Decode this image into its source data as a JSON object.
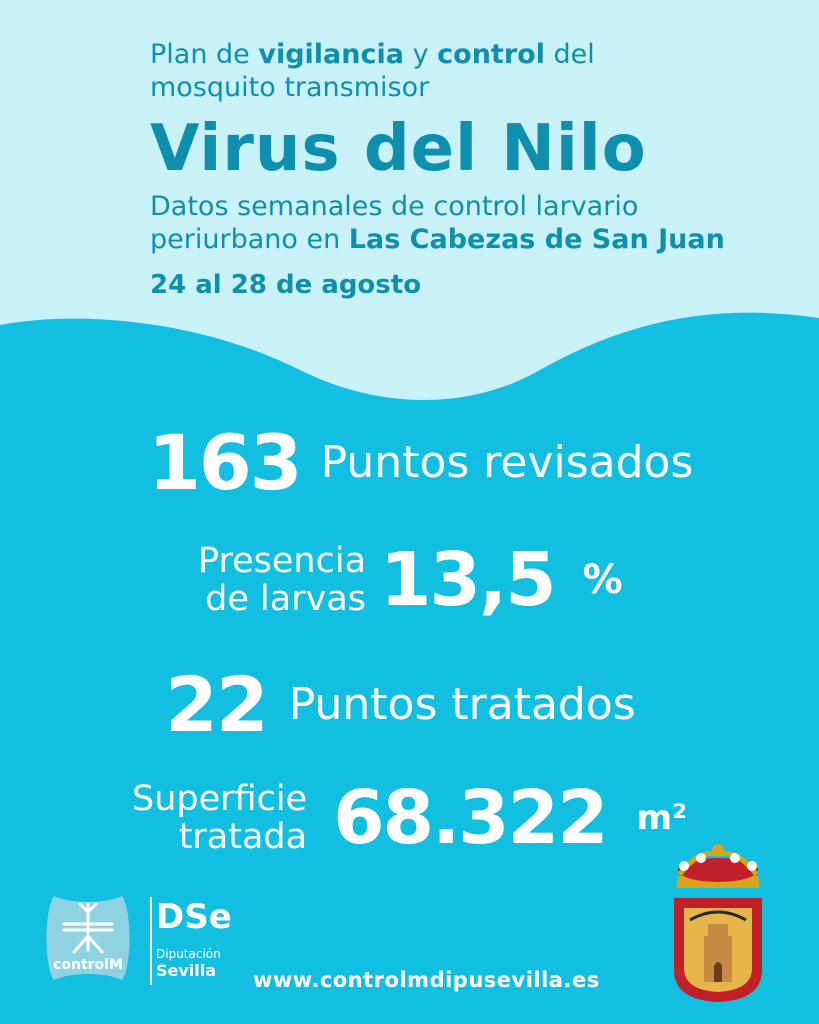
{
  "header": {
    "line1_a": "Plan de ",
    "line1_b": "vigilancia",
    "line1_c": " y ",
    "line1_d": "control",
    "line1_e": " del",
    "line2": "mosquito transmisor",
    "title": "Virus del Nilo",
    "sub1": "Datos semanales de control larvario",
    "sub2_a": "periurbano en ",
    "sub2_b": "Las Cabezas de San Juan",
    "date": "24 al 28 de agosto"
  },
  "stats": {
    "puntos_revisados": {
      "value": "163",
      "label": "Puntos revisados"
    },
    "presencia": {
      "label1": "Presencia",
      "label2": "de larvas",
      "value": "13,5",
      "unit": "%"
    },
    "puntos_tratados": {
      "value": "22",
      "label": "Puntos tratados"
    },
    "superficie": {
      "label1": "Superficie",
      "label2": "tratada",
      "value": "68.322",
      "unit": "m²"
    }
  },
  "footer": {
    "controlm_label": "controlM",
    "dse_mark": "DSe",
    "dse_line1": "Diputación",
    "dse_line2": "Sevilla",
    "url": "www.controlmdipusevilla.es"
  },
  "colors": {
    "top_bg": "#c9f1f8",
    "main_bg": "#13bfe0",
    "header_text": "#0f8fae"
  }
}
